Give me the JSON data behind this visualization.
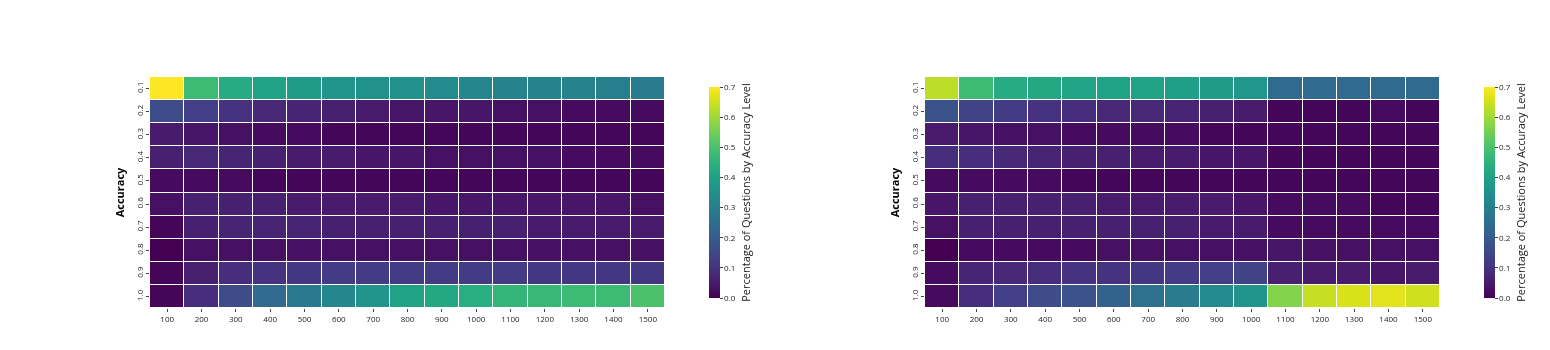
{
  "chart_data": [
    {
      "type": "heatmap",
      "ylabel": "Accuracy",
      "clabel": "Percentage of Questions by Accuracy Level",
      "categories": [
        "100",
        "200",
        "300",
        "400",
        "500",
        "600",
        "700",
        "800",
        "900",
        "1000",
        "1100",
        "1200",
        "1300",
        "1400",
        "1500"
      ],
      "y_categories": [
        "0.1",
        "0.2",
        "0.3",
        "0.4",
        "0.5",
        "0.6",
        "0.7",
        "0.8",
        "0.9",
        "1.0"
      ],
      "clim": [
        0,
        0.7
      ],
      "cticks": [
        {
          "value": 0,
          "label": "0.0"
        },
        0.1,
        0.2,
        0.3,
        0.4,
        0.5,
        0.6,
        0.7
      ],
      "cells": [
        [
          0.7,
          0.48,
          0.43,
          0.4,
          0.38,
          0.36,
          0.35,
          0.35,
          0.33,
          0.32,
          0.31,
          0.31,
          0.31,
          0.3,
          0.29
        ],
        [
          0.16,
          0.13,
          0.1,
          0.08,
          0.07,
          0.06,
          0.05,
          0.04,
          0.04,
          0.04,
          0.03,
          0.03,
          0.02,
          0.02,
          0.02
        ],
        [
          0.05,
          0.04,
          0.03,
          0.02,
          0.02,
          0.01,
          0.01,
          0.01,
          0.01,
          0.01,
          0.01,
          0.01,
          0.01,
          0.01,
          0.01
        ],
        [
          0.06,
          0.08,
          0.07,
          0.06,
          0.05,
          0.05,
          0.04,
          0.04,
          0.03,
          0.03,
          0.03,
          0.03,
          0.02,
          0.02,
          0.02
        ],
        [
          0.02,
          0.02,
          0.02,
          0.01,
          0.01,
          0.01,
          0.01,
          0.01,
          0.01,
          0.01,
          0.01,
          0.01,
          0.01,
          0.01,
          0.01
        ],
        [
          0.03,
          0.06,
          0.06,
          0.06,
          0.05,
          0.05,
          0.05,
          0.05,
          0.04,
          0.04,
          0.04,
          0.04,
          0.04,
          0.04,
          0.03
        ],
        [
          0.01,
          0.06,
          0.07,
          0.07,
          0.07,
          0.06,
          0.06,
          0.06,
          0.06,
          0.06,
          0.06,
          0.05,
          0.05,
          0.05,
          0.05
        ],
        [
          0.0,
          0.03,
          0.03,
          0.03,
          0.03,
          0.03,
          0.03,
          0.03,
          0.03,
          0.03,
          0.03,
          0.03,
          0.03,
          0.03,
          0.03
        ],
        [
          0.01,
          0.06,
          0.09,
          0.1,
          0.11,
          0.12,
          0.12,
          0.12,
          0.12,
          0.12,
          0.12,
          0.11,
          0.11,
          0.11,
          0.11
        ],
        [
          0.01,
          0.09,
          0.16,
          0.24,
          0.28,
          0.32,
          0.36,
          0.4,
          0.42,
          0.44,
          0.46,
          0.47,
          0.48,
          0.48,
          0.5
        ]
      ]
    },
    {
      "type": "heatmap",
      "ylabel": "Accuracy",
      "clabel": "Percentage of Questions by Accuracy Level",
      "categories": [
        "100",
        "200",
        "300",
        "400",
        "500",
        "600",
        "700",
        "800",
        "900",
        "1000",
        "1100",
        "1200",
        "1300",
        "1400",
        "1500"
      ],
      "y_categories": [
        "0.1",
        "0.2",
        "0.3",
        "0.4",
        "0.5",
        "0.6",
        "0.7",
        "0.8",
        "0.9",
        "1.0"
      ],
      "clim": [
        0,
        0.7
      ],
      "cticks": [
        {
          "value": 0,
          "label": "0.0"
        },
        0.1,
        0.2,
        0.3,
        0.4,
        0.5,
        0.6,
        0.7
      ],
      "cells": [
        [
          0.63,
          0.48,
          0.43,
          0.42,
          0.41,
          0.4,
          0.4,
          0.39,
          0.38,
          0.37,
          0.24,
          0.24,
          0.24,
          0.24,
          0.24
        ],
        [
          0.18,
          0.14,
          0.12,
          0.1,
          0.09,
          0.08,
          0.08,
          0.07,
          0.06,
          0.05,
          0.01,
          0.01,
          0.01,
          0.02,
          0.01
        ],
        [
          0.05,
          0.04,
          0.03,
          0.03,
          0.02,
          0.02,
          0.02,
          0.02,
          0.01,
          0.01,
          0.01,
          0.01,
          0.01,
          0.01,
          0.01
        ],
        [
          0.09,
          0.09,
          0.08,
          0.07,
          0.06,
          0.06,
          0.05,
          0.05,
          0.04,
          0.04,
          0.01,
          0.01,
          0.01,
          0.01,
          0.01
        ],
        [
          0.02,
          0.02,
          0.02,
          0.02,
          0.01,
          0.01,
          0.01,
          0.01,
          0.01,
          0.01,
          0.01,
          0.01,
          0.01,
          0.01,
          0.01
        ],
        [
          0.04,
          0.06,
          0.06,
          0.06,
          0.06,
          0.05,
          0.05,
          0.05,
          0.05,
          0.04,
          0.02,
          0.02,
          0.02,
          0.01,
          0.01
        ],
        [
          0.03,
          0.06,
          0.06,
          0.06,
          0.06,
          0.06,
          0.06,
          0.06,
          0.05,
          0.05,
          0.02,
          0.02,
          0.02,
          0.02,
          0.02
        ],
        [
          0.0,
          0.02,
          0.02,
          0.02,
          0.02,
          0.03,
          0.03,
          0.03,
          0.03,
          0.03,
          0.04,
          0.03,
          0.03,
          0.03,
          0.03
        ],
        [
          0.02,
          0.07,
          0.08,
          0.09,
          0.1,
          0.1,
          0.11,
          0.12,
          0.13,
          0.14,
          0.06,
          0.05,
          0.05,
          0.04,
          0.05
        ],
        [
          0.02,
          0.09,
          0.13,
          0.16,
          0.18,
          0.22,
          0.26,
          0.29,
          0.33,
          0.36,
          0.57,
          0.64,
          0.66,
          0.67,
          0.65
        ]
      ]
    }
  ]
}
